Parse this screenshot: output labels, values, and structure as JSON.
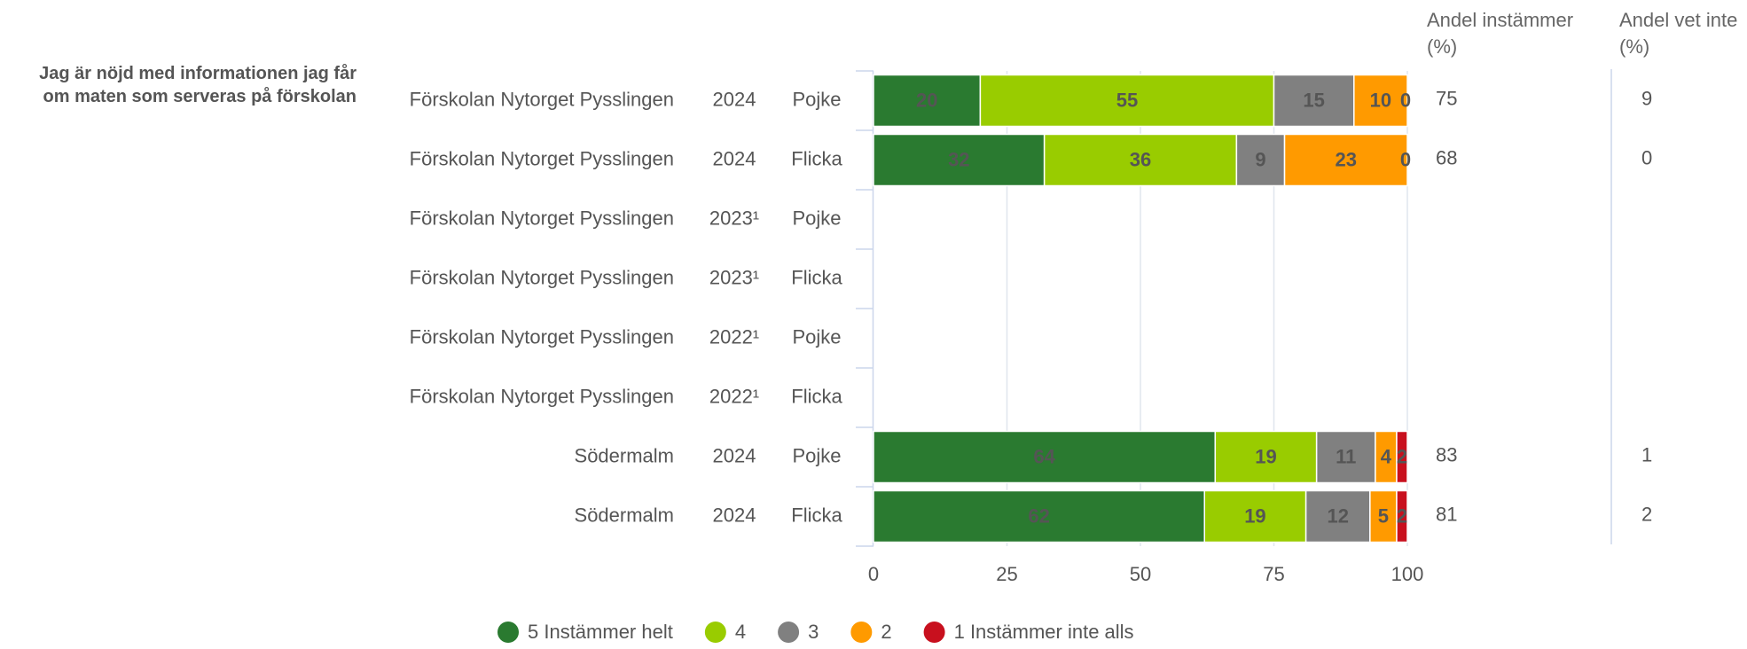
{
  "chart_data": {
    "type": "stacked-bar-horizontal",
    "question": "Jag är nöjd med informationen jag får om maten som serveras på förskolan",
    "units": [
      "Förskolan Nytorget Pysslingen",
      "Förskolan Nytorget Pysslingen",
      "Förskolan Nytorget Pysslingen",
      "Förskolan Nytorget Pysslingen",
      "Förskolan Nytorget Pysslingen",
      "Förskolan Nytorget Pysslingen",
      "Södermalm",
      "Södermalm"
    ],
    "years": [
      "2024",
      "2024",
      "2023¹",
      "2023¹",
      "2022¹",
      "2022¹",
      "2024",
      "2024"
    ],
    "genders": [
      "Pojke",
      "Flicka",
      "Pojke",
      "Flicka",
      "Pojke",
      "Flicka",
      "Pojke",
      "Flicka"
    ],
    "series": [
      {
        "name": "5 Instämmer helt",
        "color": "#2a7a30",
        "label_color": "#ffffff",
        "values": [
          20,
          32,
          null,
          null,
          null,
          null,
          64,
          62
        ]
      },
      {
        "name": "4",
        "color": "#99cc00",
        "label_color": "#000000",
        "values": [
          55,
          36,
          null,
          null,
          null,
          null,
          19,
          19
        ]
      },
      {
        "name": "3",
        "color": "#808080",
        "label_color": "#000000",
        "values": [
          15,
          9,
          null,
          null,
          null,
          null,
          11,
          12
        ]
      },
      {
        "name": "2",
        "color": "#ff9a00",
        "label_color": "#000000",
        "values": [
          10,
          23,
          null,
          null,
          null,
          null,
          4,
          5
        ]
      },
      {
        "name": "1 Instämmer inte alls",
        "color": "#c8101e",
        "label_color": "#ffffff",
        "values": [
          0,
          0,
          null,
          null,
          null,
          null,
          2,
          2
        ]
      }
    ],
    "agree_header": "Andel instämmer (%)",
    "agree": [
      75,
      68,
      null,
      null,
      null,
      null,
      83,
      81
    ],
    "dontknow_header": "Andel vet inte (%)",
    "dontknow": [
      9,
      0,
      null,
      null,
      null,
      null,
      1,
      2
    ],
    "xlim": [
      0,
      100
    ],
    "xticks": [
      0,
      25,
      50,
      75,
      100
    ],
    "grid": true
  }
}
